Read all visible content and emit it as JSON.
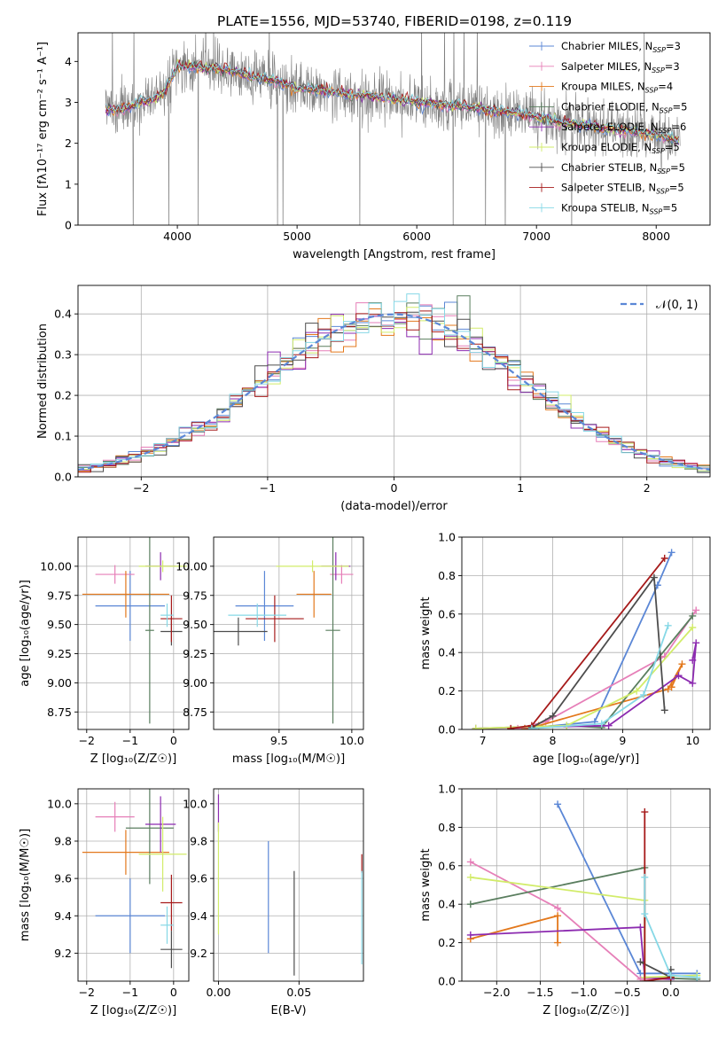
{
  "title": "PLATE=1556, MJD=53740, FIBERID=0198, z=0.119",
  "colors": {
    "Chabrier MILES": "#5b87d6",
    "Salpeter MILES": "#e67fb8",
    "Kroupa MILES": "#e3781c",
    "Chabrier ELODIE": "#5a7e5f",
    "Salpeter ELODIE": "#8c2bb0",
    "Kroupa ELODIE": "#d2ec6a",
    "Chabrier STELIB": "#4d4d4d",
    "Salpeter STELIB": "#a61a1a",
    "Kroupa STELIB": "#86d8e6",
    "gaussian": "#5b87d6"
  },
  "chart_data": [
    {
      "id": "spectrum",
      "type": "line",
      "xlabel": "wavelength [Angstrom, rest frame]",
      "ylabel": "Flux [fλ10⁻¹⁷ erg cm⁻² s⁻¹ A⁻¹]",
      "xlim": [
        3170,
        8450
      ],
      "ylim": [
        0,
        4.7
      ],
      "xticks": [
        4000,
        5000,
        6000,
        7000,
        8000
      ],
      "yticks": [
        0,
        1,
        2,
        3,
        4
      ],
      "legend_position": "upper right",
      "series": [
        {
          "name": "Chabrier MILES, N",
          "sub": "SSP",
          "suffix": "=3",
          "model": "Chabrier MILES"
        },
        {
          "name": "Salpeter MILES, N",
          "sub": "SSP",
          "suffix": "=3",
          "model": "Salpeter MILES"
        },
        {
          "name": "Kroupa MILES, N",
          "sub": "SSP",
          "suffix": "=4",
          "model": "Kroupa MILES"
        },
        {
          "name": "Chabrier ELODIE, N",
          "sub": "SSP",
          "suffix": "=5",
          "model": "Chabrier ELODIE"
        },
        {
          "name": "Salpeter ELODIE, N",
          "sub": "SSP",
          "suffix": "=6",
          "model": "Salpeter ELODIE"
        },
        {
          "name": "Kroupa ELODIE, N",
          "sub": "SSP",
          "suffix": "=5",
          "model": "Kroupa ELODIE"
        },
        {
          "name": "Chabrier STELIB, N",
          "sub": "SSP",
          "suffix": "=5",
          "model": "Chabrier STELIB"
        },
        {
          "name": "Salpeter STELIB, N",
          "sub": "SSP",
          "suffix": "=5",
          "model": "Salpeter STELIB"
        },
        {
          "name": "Kroupa STELIB, N",
          "sub": "SSP",
          "suffix": "=5",
          "model": "Kroupa STELIB"
        }
      ],
      "continuum": [
        [
          3400,
          2.85
        ],
        [
          3500,
          2.8
        ],
        [
          3600,
          2.9
        ],
        [
          3700,
          3.0
        ],
        [
          3800,
          3.05
        ],
        [
          3900,
          3.3
        ],
        [
          4000,
          3.9
        ],
        [
          4200,
          3.85
        ],
        [
          4400,
          3.8
        ],
        [
          4600,
          3.65
        ],
        [
          4800,
          3.55
        ],
        [
          5000,
          3.35
        ],
        [
          5200,
          3.3
        ],
        [
          5400,
          3.2
        ],
        [
          5600,
          3.15
        ],
        [
          5800,
          3.1
        ],
        [
          6000,
          3.0
        ],
        [
          6200,
          2.95
        ],
        [
          6400,
          2.9
        ],
        [
          6600,
          2.8
        ],
        [
          6800,
          2.75
        ],
        [
          7000,
          2.65
        ],
        [
          7200,
          2.5
        ],
        [
          7400,
          2.45
        ],
        [
          7600,
          2.35
        ],
        [
          7800,
          2.3
        ],
        [
          8000,
          2.2
        ],
        [
          8200,
          2.05
        ]
      ]
    },
    {
      "id": "residuals",
      "type": "histogram",
      "xlabel": "(data-model)/error",
      "ylabel": "Normed distribution",
      "xlim": [
        -2.5,
        2.5
      ],
      "ylim": [
        0,
        0.47
      ],
      "xticks": [
        -2,
        -1,
        0,
        1,
        2
      ],
      "yticks": [
        0.0,
        0.1,
        0.2,
        0.3,
        0.4
      ],
      "bin_width": 0.1,
      "legend": "𝒩(0, 1)",
      "legend_position": "upper right",
      "gaussian": {
        "mean": 0,
        "sigma": 1
      }
    },
    {
      "id": "age_vs_Z",
      "type": "errorbar",
      "xlabel": "Z [log₁₀(Z/Z☉)]",
      "ylabel": "age  [log₁₀(age/yr)]",
      "xlim": [
        -2.2,
        0.35
      ],
      "ylim": [
        8.6,
        10.25
      ],
      "xticks": [
        -2,
        -1,
        0
      ],
      "yticks": [
        8.75,
        9.0,
        9.25,
        9.5,
        9.75,
        10.0
      ],
      "points": [
        {
          "model": "Chabrier MILES",
          "x": -1.0,
          "xerr": 0.8,
          "y": 9.66,
          "yerr": 0.3
        },
        {
          "model": "Salpeter MILES",
          "x": -1.35,
          "xerr": 0.45,
          "y": 9.93,
          "yerr": 0.08
        },
        {
          "model": "Kroupa MILES",
          "x": -1.1,
          "xerr": 1.0,
          "y": 9.76,
          "yerr": 0.2
        },
        {
          "model": "Chabrier ELODIE",
          "x": -0.55,
          "xerr": 0.1,
          "y": 9.45,
          "yerr": 0.8
        },
        {
          "model": "Salpeter ELODIE",
          "x": -0.3,
          "xerr": 0.35,
          "y": 10.0,
          "yerr": 0.12
        },
        {
          "model": "Kroupa ELODIE",
          "x": -0.25,
          "xerr": 0.55,
          "y": 10.0,
          "yerr": 0.05
        },
        {
          "model": "Chabrier STELIB",
          "x": -0.05,
          "xerr": 0.25,
          "y": 9.44,
          "yerr": 0.12
        },
        {
          "model": "Salpeter STELIB",
          "x": -0.05,
          "xerr": 0.25,
          "y": 9.55,
          "yerr": 0.2
        },
        {
          "model": "Kroupa STELIB",
          "x": -0.15,
          "xerr": 0.15,
          "y": 9.58,
          "yerr": 0.1
        }
      ]
    },
    {
      "id": "age_vs_mass",
      "type": "errorbar",
      "xlabel": "mass [log₁₀(M/M☉)]",
      "ylabel": "",
      "xlim": [
        9.05,
        10.08
      ],
      "ylim": [
        8.6,
        10.25
      ],
      "xticks": [
        9.5,
        10.0
      ],
      "yticks": [
        8.75,
        9.0,
        9.25,
        9.5,
        9.75,
        10.0
      ],
      "points": [
        {
          "model": "Chabrier MILES",
          "x": 9.4,
          "xerr": 0.2,
          "y": 9.66,
          "yerr": 0.3
        },
        {
          "model": "Salpeter MILES",
          "x": 9.93,
          "xerr": 0.08,
          "y": 9.93,
          "yerr": 0.08
        },
        {
          "model": "Kroupa MILES",
          "x": 9.74,
          "xerr": 0.12,
          "y": 9.76,
          "yerr": 0.2
        },
        {
          "model": "Chabrier ELODIE",
          "x": 9.87,
          "xerr": 0.05,
          "y": 9.45,
          "yerr": 0.8
        },
        {
          "model": "Salpeter ELODIE",
          "x": 9.89,
          "xerr": 0.1,
          "y": 10.0,
          "yerr": 0.12
        },
        {
          "model": "Kroupa ELODIE",
          "x": 9.73,
          "xerr": 0.25,
          "y": 10.0,
          "yerr": 0.05
        },
        {
          "model": "Chabrier STELIB",
          "x": 9.22,
          "xerr": 0.2,
          "y": 9.44,
          "yerr": 0.12
        },
        {
          "model": "Salpeter STELIB",
          "x": 9.47,
          "xerr": 0.2,
          "y": 9.55,
          "yerr": 0.2
        },
        {
          "model": "Kroupa STELIB",
          "x": 9.35,
          "xerr": 0.2,
          "y": 9.58,
          "yerr": 0.1
        }
      ]
    },
    {
      "id": "weight_vs_age",
      "type": "line",
      "xlabel": "age  [log₁₀(age/yr)]",
      "ylabel": "mass weight",
      "xlim": [
        6.7,
        10.25
      ],
      "ylim": [
        0,
        1.0
      ],
      "xticks": [
        7,
        8,
        9,
        10
      ],
      "yticks": [
        0.0,
        0.2,
        0.4,
        0.6,
        0.8,
        1.0
      ],
      "series": [
        {
          "model": "Chabrier MILES",
          "points": [
            [
              7.6,
              0.005
            ],
            [
              8.6,
              0.04
            ],
            [
              9.5,
              0.75
            ],
            [
              9.7,
              0.92
            ]
          ]
        },
        {
          "model": "Salpeter MILES",
          "points": [
            [
              7.5,
              0.005
            ],
            [
              7.9,
              0.04
            ],
            [
              9.6,
              0.38
            ],
            [
              10.05,
              0.62
            ]
          ]
        },
        {
          "model": "Kroupa MILES",
          "points": [
            [
              7.6,
              0.005
            ],
            [
              7.8,
              0.02
            ],
            [
              9.65,
              0.21
            ],
            [
              9.85,
              0.34
            ],
            [
              9.7,
              0.22
            ]
          ]
        },
        {
          "model": "Chabrier ELODIE",
          "points": [
            [
              6.9,
              0.005
            ],
            [
              8.2,
              0.02
            ],
            [
              8.7,
              0.01
            ],
            [
              10.0,
              0.59
            ]
          ]
        },
        {
          "model": "Salpeter ELODIE",
          "points": [
            [
              6.9,
              0.005
            ],
            [
              8.8,
              0.02
            ],
            [
              9.8,
              0.28
            ],
            [
              10.0,
              0.24
            ],
            [
              10.05,
              0.45
            ],
            [
              10.0,
              0.36
            ]
          ]
        },
        {
          "model": "Kroupa ELODIE",
          "points": [
            [
              6.9,
              0.005
            ],
            [
              8.2,
              0.02
            ],
            [
              9.2,
              0.2
            ],
            [
              10.0,
              0.53
            ]
          ]
        },
        {
          "model": "Chabrier STELIB",
          "points": [
            [
              7.7,
              0.01
            ],
            [
              8.0,
              0.07
            ],
            [
              9.45,
              0.79
            ],
            [
              9.6,
              0.1
            ]
          ]
        },
        {
          "model": "Salpeter STELIB",
          "points": [
            [
              7.4,
              0.005
            ],
            [
              7.7,
              0.02
            ],
            [
              9.6,
              0.89
            ]
          ]
        },
        {
          "model": "Kroupa STELIB",
          "points": [
            [
              7.7,
              0.005
            ],
            [
              8.7,
              0.03
            ],
            [
              9.3,
              0.18
            ],
            [
              9.65,
              0.54
            ]
          ]
        }
      ]
    },
    {
      "id": "mass_vs_Z",
      "type": "errorbar",
      "xlabel": "Z [log₁₀(Z/Z☉)]",
      "ylabel": "mass [log₁₀(M/M☉)]",
      "xlim": [
        -2.2,
        0.35
      ],
      "ylim": [
        9.05,
        10.08
      ],
      "xticks": [
        -2,
        -1,
        0
      ],
      "yticks": [
        9.2,
        9.4,
        9.6,
        9.8,
        10.0
      ],
      "points": [
        {
          "model": "Chabrier MILES",
          "x": -1.0,
          "xerr": 0.8,
          "y": 9.4,
          "yerr": 0.2
        },
        {
          "model": "Salpeter MILES",
          "x": -1.35,
          "xerr": 0.45,
          "y": 9.93,
          "yerr": 0.08
        },
        {
          "model": "Kroupa MILES",
          "x": -1.1,
          "xerr": 1.0,
          "y": 9.74,
          "yerr": 0.12
        },
        {
          "model": "Chabrier ELODIE",
          "x": -0.55,
          "xerr": 0.55,
          "y": 9.87,
          "yerr": 0.3
        },
        {
          "model": "Salpeter ELODIE",
          "x": -0.3,
          "xerr": 0.35,
          "y": 9.89,
          "yerr": 0.15
        },
        {
          "model": "Kroupa ELODIE",
          "x": -0.25,
          "xerr": 0.55,
          "y": 9.73,
          "yerr": 0.2
        },
        {
          "model": "Chabrier STELIB",
          "x": -0.05,
          "xerr": 0.25,
          "y": 9.22,
          "yerr": 0.1
        },
        {
          "model": "Salpeter STELIB",
          "x": -0.05,
          "xerr": 0.25,
          "y": 9.47,
          "yerr": 0.15
        },
        {
          "model": "Kroupa STELIB",
          "x": -0.15,
          "xerr": 0.15,
          "y": 9.35,
          "yerr": 0.1
        }
      ]
    },
    {
      "id": "mass_vs_ebv",
      "type": "errorbar",
      "xlabel": "E(B-V)",
      "ylabel": "",
      "xlim": [
        -0.003,
        0.09
      ],
      "ylim": [
        9.05,
        10.08
      ],
      "xticks": [
        0.0,
        0.05
      ],
      "yticks": [
        9.2,
        9.4,
        9.6,
        9.8,
        10.0
      ],
      "points": [
        {
          "model": "Chabrier MILES",
          "x": 0.031,
          "xerr": 0,
          "y": 9.5,
          "yerr": 0.3
        },
        {
          "model": "Salpeter ELODIE",
          "x": 0.0,
          "xerr": 0,
          "y": 9.95,
          "yerr": 0.1
        },
        {
          "model": "Kroupa ELODIE",
          "x": 0.0,
          "xerr": 0,
          "y": 9.6,
          "yerr": 0.3
        },
        {
          "model": "Chabrier STELIB",
          "x": 0.047,
          "xerr": 0,
          "y": 9.36,
          "yerr": 0.28
        },
        {
          "model": "Salpeter STELIB",
          "x": 0.089,
          "xerr": 0,
          "y": 9.68,
          "yerr": 0.05
        },
        {
          "model": "Kroupa STELIB",
          "x": 0.089,
          "xerr": 0,
          "y": 9.39,
          "yerr": 0.25
        }
      ]
    },
    {
      "id": "weight_vs_Z",
      "type": "line",
      "xlabel": "Z [log₁₀(Z/Z☉)]",
      "ylabel": "mass weight",
      "xlim": [
        -2.4,
        0.45
      ],
      "ylim": [
        0,
        1.0
      ],
      "xticks": [
        -2.0,
        -1.5,
        -1.0,
        -0.5,
        0.0
      ],
      "yticks": [
        0.0,
        0.2,
        0.4,
        0.6,
        0.8,
        1.0
      ],
      "series": [
        {
          "model": "Chabrier MILES",
          "points": [
            [
              -1.3,
              0.92
            ],
            [
              -0.35,
              0.04
            ],
            [
              0.0,
              0.04
            ],
            [
              0.3,
              0.04
            ]
          ]
        },
        {
          "model": "Salpeter MILES",
          "points": [
            [
              -2.3,
              0.62
            ],
            [
              -1.3,
              0.38
            ],
            [
              -0.35,
              0.01
            ],
            [
              0.0,
              0.01
            ]
          ]
        },
        {
          "model": "Kroupa MILES",
          "points": [
            [
              -2.3,
              0.22
            ],
            [
              -1.3,
              0.34
            ],
            [
              -1.3,
              0.2
            ]
          ]
        },
        {
          "model": "Chabrier ELODIE",
          "points": [
            [
              -2.3,
              0.4
            ],
            [
              -0.3,
              0.59
            ],
            [
              -0.3,
              0.02
            ],
            [
              0.3,
              0.01
            ]
          ]
        },
        {
          "model": "Salpeter ELODIE",
          "points": [
            [
              -2.3,
              0.24
            ],
            [
              -0.35,
              0.28
            ],
            [
              -0.3,
              0.02
            ],
            [
              0.0,
              0.01
            ]
          ]
        },
        {
          "model": "Kroupa ELODIE",
          "points": [
            [
              -2.3,
              0.54
            ],
            [
              -0.3,
              0.42
            ],
            [
              -0.3,
              0.02
            ],
            [
              0.3,
              0.03
            ]
          ]
        },
        {
          "model": "Chabrier STELIB",
          "points": [
            [
              -0.35,
              0.1
            ],
            [
              0.0,
              0.02
            ],
            [
              0.0,
              0.06
            ]
          ]
        },
        {
          "model": "Salpeter STELIB",
          "points": [
            [
              -0.3,
              0.88
            ],
            [
              -0.3,
              0.0
            ],
            [
              0.0,
              0.02
            ]
          ]
        },
        {
          "model": "Kroupa STELIB",
          "points": [
            [
              -0.3,
              0.54
            ],
            [
              -0.3,
              0.35
            ],
            [
              0.0,
              0.03
            ],
            [
              0.3,
              0.02
            ]
          ]
        }
      ]
    }
  ]
}
